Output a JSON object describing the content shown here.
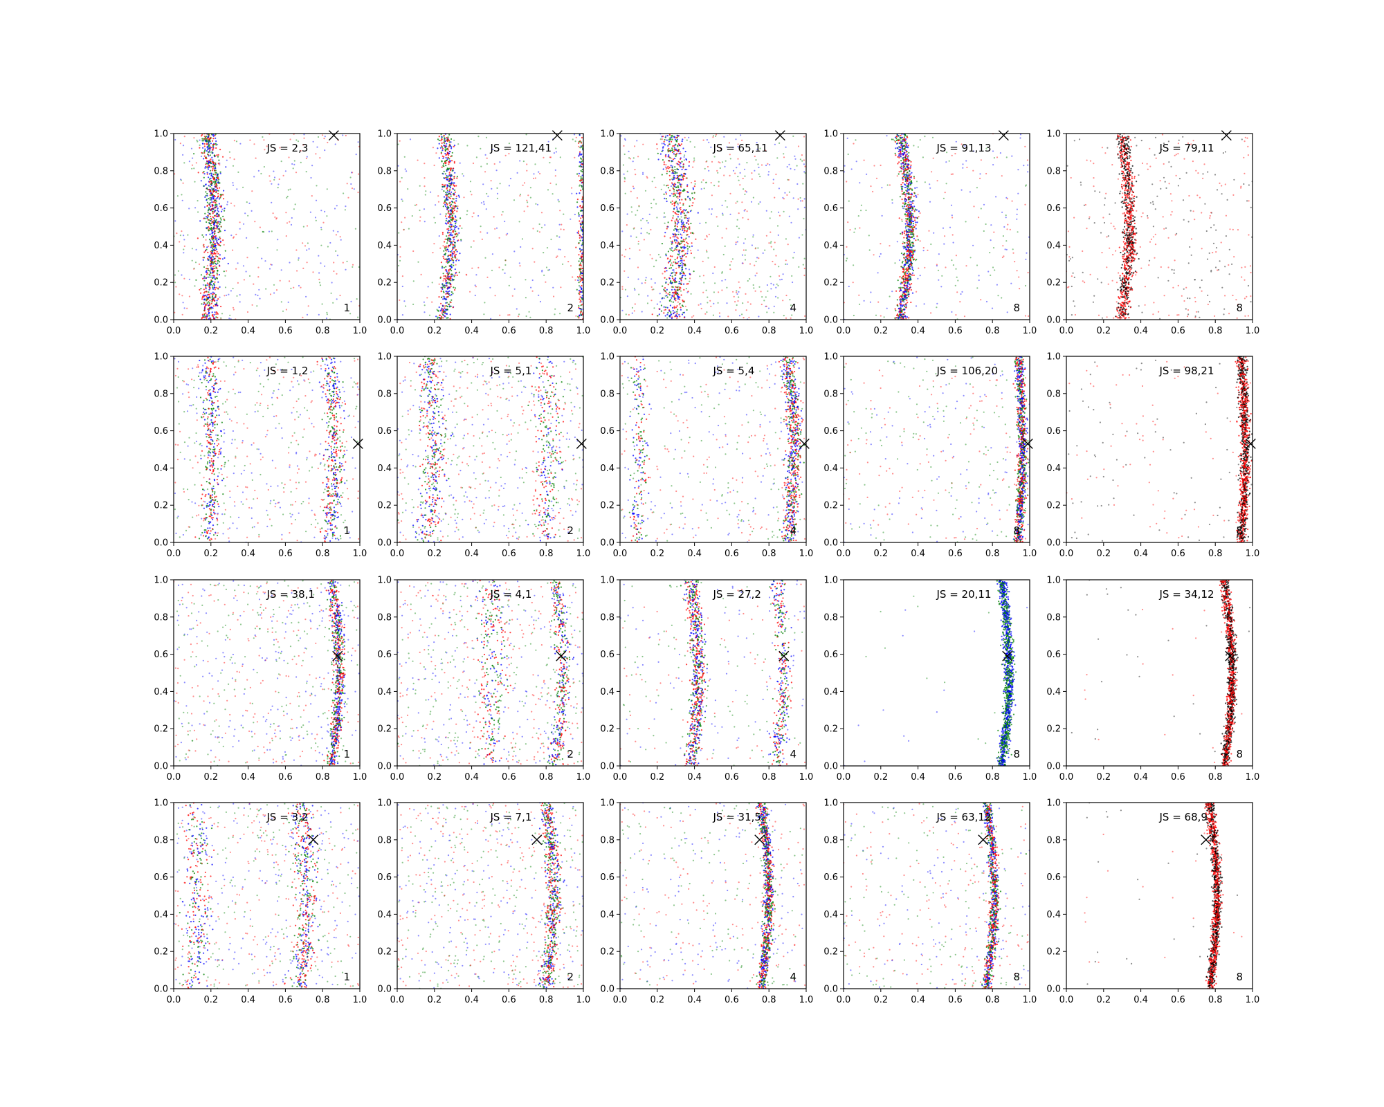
{
  "figure": {
    "rows": 4,
    "cols": 5,
    "colors": {
      "red": "#ff0000",
      "green": "#008000",
      "blue": "#0000ff",
      "black": "#000000"
    }
  },
  "chart_data": [
    {
      "type": "scatter",
      "row": 0,
      "col": 0,
      "annotation": "JS = 2,3",
      "corner_label": "1",
      "xlim": [
        0,
        1
      ],
      "ylim": [
        0,
        1
      ],
      "xticks": [
        "0.0",
        "0.2",
        "0.4",
        "0.6",
        "0.8",
        "1.0"
      ],
      "yticks": [
        "0.0",
        "0.2",
        "0.4",
        "0.6",
        "0.8",
        "1.0"
      ],
      "marker": {
        "x": 0.86,
        "y": 0.99
      },
      "colors": [
        "red",
        "green",
        "blue"
      ],
      "bands": [
        {
          "x0": 0.2,
          "amp": 0.03,
          "width": 0.05,
          "share": 0.7
        }
      ]
    },
    {
      "type": "scatter",
      "row": 0,
      "col": 1,
      "annotation": "JS = 121,41",
      "corner_label": "2",
      "xlim": [
        0,
        1
      ],
      "ylim": [
        0,
        1
      ],
      "xticks": [
        "0.0",
        "0.2",
        "0.4",
        "0.6",
        "0.8",
        "1.0"
      ],
      "yticks": [
        "0.0",
        "0.2",
        "0.4",
        "0.6",
        "0.8",
        "1.0"
      ],
      "marker": {
        "x": 0.86,
        "y": 0.99
      },
      "colors": [
        "red",
        "green",
        "blue"
      ],
      "bands": [
        {
          "x0": 0.27,
          "amp": 0.04,
          "width": 0.04,
          "share": 0.55
        },
        {
          "x0": 0.99,
          "amp": 0.0,
          "width": 0.02,
          "share": 0.2
        }
      ]
    },
    {
      "type": "scatter",
      "row": 0,
      "col": 2,
      "annotation": "JS = 65,11",
      "corner_label": "4",
      "xlim": [
        0,
        1
      ],
      "ylim": [
        0,
        1
      ],
      "xticks": [
        "0.0",
        "0.2",
        "0.4",
        "0.6",
        "0.8",
        "1.0"
      ],
      "yticks": [
        "0.0",
        "0.2",
        "0.4",
        "0.6",
        "0.8",
        "1.0"
      ],
      "marker": {
        "x": 0.86,
        "y": 0.99
      },
      "colors": [
        "red",
        "green",
        "blue"
      ],
      "bands": [
        {
          "x0": 0.3,
          "amp": 0.05,
          "width": 0.07,
          "share": 0.55
        }
      ]
    },
    {
      "type": "scatter",
      "row": 0,
      "col": 3,
      "annotation": "JS = 91,13",
      "corner_label": "8",
      "xlim": [
        0,
        1
      ],
      "ylim": [
        0,
        1
      ],
      "xticks": [
        "0.0",
        "0.2",
        "0.4",
        "0.6",
        "0.8",
        "1.0"
      ],
      "yticks": [
        "0.0",
        "0.2",
        "0.4",
        "0.6",
        "0.8",
        "1.0"
      ],
      "marker": {
        "x": 0.86,
        "y": 0.99
      },
      "colors": [
        "red",
        "green",
        "blue"
      ],
      "bands": [
        {
          "x0": 0.33,
          "amp": 0.05,
          "width": 0.035,
          "share": 0.8
        }
      ]
    },
    {
      "type": "scatter",
      "row": 0,
      "col": 4,
      "annotation": "JS = 79,11",
      "corner_label": "8",
      "xlim": [
        0,
        1
      ],
      "ylim": [
        0,
        1
      ],
      "xticks": [
        "0.0",
        "0.2",
        "0.4",
        "0.6",
        "0.8",
        "1.0"
      ],
      "yticks": [
        "0.0",
        "0.2",
        "0.4",
        "0.6",
        "0.8",
        "1.0"
      ],
      "marker": {
        "x": 0.86,
        "y": 0.99
      },
      "colors": [
        "red",
        "black"
      ],
      "bands": [
        {
          "x0": 0.32,
          "amp": 0.04,
          "width": 0.035,
          "share": 0.75
        }
      ]
    },
    {
      "type": "scatter",
      "row": 1,
      "col": 0,
      "annotation": "JS = 1,2",
      "corner_label": "1",
      "xlim": [
        0,
        1
      ],
      "ylim": [
        0,
        1
      ],
      "xticks": [
        "0.0",
        "0.2",
        "0.4",
        "0.6",
        "0.8",
        "1.0"
      ],
      "yticks": [
        "0.0",
        "0.2",
        "0.4",
        "0.6",
        "0.8",
        "1.0"
      ],
      "marker": {
        "x": 0.99,
        "y": 0.53
      },
      "colors": [
        "red",
        "green",
        "blue"
      ],
      "bands": [
        {
          "x0": 0.2,
          "amp": 0.02,
          "width": 0.05,
          "share": 0.3
        },
        {
          "x0": 0.85,
          "amp": 0.03,
          "width": 0.05,
          "share": 0.3
        }
      ]
    },
    {
      "type": "scatter",
      "row": 1,
      "col": 1,
      "annotation": "JS = 5,1",
      "corner_label": "2",
      "xlim": [
        0,
        1
      ],
      "ylim": [
        0,
        1
      ],
      "xticks": [
        "0.0",
        "0.2",
        "0.4",
        "0.6",
        "0.8",
        "1.0"
      ],
      "yticks": [
        "0.0",
        "0.2",
        "0.4",
        "0.6",
        "0.8",
        "1.0"
      ],
      "marker": {
        "x": 0.99,
        "y": 0.53
      },
      "colors": [
        "red",
        "green",
        "blue"
      ],
      "bands": [
        {
          "x0": 0.18,
          "amp": 0.03,
          "width": 0.07,
          "share": 0.3
        },
        {
          "x0": 0.8,
          "amp": 0.03,
          "width": 0.07,
          "share": 0.2
        }
      ]
    },
    {
      "type": "scatter",
      "row": 1,
      "col": 2,
      "annotation": "JS = 5,4",
      "corner_label": "4",
      "xlim": [
        0,
        1
      ],
      "ylim": [
        0,
        1
      ],
      "xticks": [
        "0.0",
        "0.2",
        "0.4",
        "0.6",
        "0.8",
        "1.0"
      ],
      "yticks": [
        "0.0",
        "0.2",
        "0.4",
        "0.6",
        "0.8",
        "1.0"
      ],
      "marker": {
        "x": 0.99,
        "y": 0.53
      },
      "colors": [
        "red",
        "green",
        "blue"
      ],
      "bands": [
        {
          "x0": 0.92,
          "amp": 0.03,
          "width": 0.04,
          "share": 0.55
        },
        {
          "x0": 0.1,
          "amp": 0.02,
          "width": 0.04,
          "share": 0.15
        }
      ]
    },
    {
      "type": "scatter",
      "row": 1,
      "col": 3,
      "annotation": "JS = 106,20",
      "corner_label": "8",
      "xlim": [
        0,
        1
      ],
      "ylim": [
        0,
        1
      ],
      "xticks": [
        "0.0",
        "0.2",
        "0.4",
        "0.6",
        "0.8",
        "1.0"
      ],
      "yticks": [
        "0.0",
        "0.2",
        "0.4",
        "0.6",
        "0.8",
        "1.0"
      ],
      "marker": {
        "x": 0.99,
        "y": 0.53
      },
      "colors": [
        "red",
        "green",
        "blue"
      ],
      "bands": [
        {
          "x0": 0.95,
          "amp": 0.02,
          "width": 0.025,
          "share": 0.75
        }
      ]
    },
    {
      "type": "scatter",
      "row": 1,
      "col": 4,
      "annotation": "JS = 98,21",
      "corner_label": "8",
      "xlim": [
        0,
        1
      ],
      "ylim": [
        0,
        1
      ],
      "xticks": [
        "0.0",
        "0.2",
        "0.4",
        "0.6",
        "0.8",
        "1.0"
      ],
      "yticks": [
        "0.0",
        "0.2",
        "0.4",
        "0.6",
        "0.8",
        "1.0"
      ],
      "marker": {
        "x": 0.99,
        "y": 0.53
      },
      "colors": [
        "red",
        "black"
      ],
      "bands": [
        {
          "x0": 0.95,
          "amp": 0.02,
          "width": 0.025,
          "share": 0.9
        }
      ]
    },
    {
      "type": "scatter",
      "row": 2,
      "col": 0,
      "annotation": "JS = 38,1",
      "corner_label": "1",
      "xlim": [
        0,
        1
      ],
      "ylim": [
        0,
        1
      ],
      "xticks": [
        "0.0",
        "0.2",
        "0.4",
        "0.6",
        "0.8",
        "1.0"
      ],
      "yticks": [
        "0.0",
        "0.2",
        "0.4",
        "0.6",
        "0.8",
        "1.0"
      ],
      "marker": {
        "x": 0.88,
        "y": 0.59
      },
      "colors": [
        "red",
        "green",
        "blue"
      ],
      "bands": [
        {
          "x0": 0.87,
          "amp": 0.04,
          "width": 0.03,
          "share": 0.55
        }
      ]
    },
    {
      "type": "scatter",
      "row": 2,
      "col": 1,
      "annotation": "JS = 4,1",
      "corner_label": "2",
      "xlim": [
        0,
        1
      ],
      "ylim": [
        0,
        1
      ],
      "xticks": [
        "0.0",
        "0.2",
        "0.4",
        "0.6",
        "0.8",
        "1.0"
      ],
      "yticks": [
        "0.0",
        "0.2",
        "0.4",
        "0.6",
        "0.8",
        "1.0"
      ],
      "marker": {
        "x": 0.88,
        "y": 0.59
      },
      "colors": [
        "red",
        "green",
        "blue"
      ],
      "bands": [
        {
          "x0": 0.87,
          "amp": 0.04,
          "width": 0.04,
          "share": 0.3
        },
        {
          "x0": 0.5,
          "amp": 0.03,
          "width": 0.08,
          "share": 0.2
        }
      ]
    },
    {
      "type": "scatter",
      "row": 2,
      "col": 2,
      "annotation": "JS = 27,2",
      "corner_label": "4",
      "xlim": [
        0,
        1
      ],
      "ylim": [
        0,
        1
      ],
      "xticks": [
        "0.0",
        "0.2",
        "0.4",
        "0.6",
        "0.8",
        "1.0"
      ],
      "yticks": [
        "0.0",
        "0.2",
        "0.4",
        "0.6",
        "0.8",
        "1.0"
      ],
      "marker": {
        "x": 0.88,
        "y": 0.59
      },
      "colors": [
        "red",
        "green",
        "blue"
      ],
      "bands": [
        {
          "x0": 0.4,
          "amp": 0.04,
          "width": 0.04,
          "share": 0.55
        },
        {
          "x0": 0.86,
          "amp": 0.03,
          "width": 0.04,
          "share": 0.25
        }
      ]
    },
    {
      "type": "scatter",
      "row": 2,
      "col": 3,
      "annotation": "JS = 20,11",
      "corner_label": "8",
      "xlim": [
        0,
        1
      ],
      "ylim": [
        0,
        1
      ],
      "xticks": [
        "0.0",
        "0.2",
        "0.4",
        "0.6",
        "0.8",
        "1.0"
      ],
      "yticks": [
        "0.0",
        "0.2",
        "0.4",
        "0.6",
        "0.8",
        "1.0"
      ],
      "marker": {
        "x": 0.88,
        "y": 0.59
      },
      "colors": [
        "green",
        "blue"
      ],
      "bands": [
        {
          "x0": 0.87,
          "amp": 0.04,
          "width": 0.025,
          "share": 0.98
        }
      ]
    },
    {
      "type": "scatter",
      "row": 2,
      "col": 4,
      "annotation": "JS = 34,12",
      "corner_label": "8",
      "xlim": [
        0,
        1
      ],
      "ylim": [
        0,
        1
      ],
      "xticks": [
        "0.0",
        "0.2",
        "0.4",
        "0.6",
        "0.8",
        "1.0"
      ],
      "yticks": [
        "0.0",
        "0.2",
        "0.4",
        "0.6",
        "0.8",
        "1.0"
      ],
      "marker": {
        "x": 0.88,
        "y": 0.59
      },
      "colors": [
        "red",
        "black"
      ],
      "bands": [
        {
          "x0": 0.87,
          "amp": 0.04,
          "width": 0.022,
          "share": 0.97
        }
      ]
    },
    {
      "type": "scatter",
      "row": 3,
      "col": 0,
      "annotation": "JS = 3,2",
      "corner_label": "1",
      "xlim": [
        0,
        1
      ],
      "ylim": [
        0,
        1
      ],
      "xticks": [
        "0.0",
        "0.2",
        "0.4",
        "0.6",
        "0.8",
        "1.0"
      ],
      "yticks": [
        "0.0",
        "0.2",
        "0.4",
        "0.6",
        "0.8",
        "1.0"
      ],
      "marker": {
        "x": 0.75,
        "y": 0.8
      },
      "colors": [
        "red",
        "green",
        "blue"
      ],
      "bands": [
        {
          "x0": 0.7,
          "amp": 0.03,
          "width": 0.06,
          "share": 0.35
        },
        {
          "x0": 0.12,
          "amp": 0.02,
          "width": 0.07,
          "share": 0.2
        }
      ]
    },
    {
      "type": "scatter",
      "row": 3,
      "col": 1,
      "annotation": "JS = 7,1",
      "corner_label": "2",
      "xlim": [
        0,
        1
      ],
      "ylim": [
        0,
        1
      ],
      "xticks": [
        "0.0",
        "0.2",
        "0.4",
        "0.6",
        "0.8",
        "1.0"
      ],
      "yticks": [
        "0.0",
        "0.2",
        "0.4",
        "0.6",
        "0.8",
        "1.0"
      ],
      "marker": {
        "x": 0.75,
        "y": 0.8
      },
      "colors": [
        "red",
        "green",
        "blue"
      ],
      "bands": [
        {
          "x0": 0.82,
          "amp": 0.04,
          "width": 0.04,
          "share": 0.5
        }
      ]
    },
    {
      "type": "scatter",
      "row": 3,
      "col": 2,
      "annotation": "JS = 31,5",
      "corner_label": "4",
      "xlim": [
        0,
        1
      ],
      "ylim": [
        0,
        1
      ],
      "xticks": [
        "0.0",
        "0.2",
        "0.4",
        "0.6",
        "0.8",
        "1.0"
      ],
      "yticks": [
        "0.0",
        "0.2",
        "0.4",
        "0.6",
        "0.8",
        "1.0"
      ],
      "marker": {
        "x": 0.75,
        "y": 0.8
      },
      "colors": [
        "red",
        "green",
        "blue"
      ],
      "bands": [
        {
          "x0": 0.78,
          "amp": 0.04,
          "width": 0.025,
          "share": 0.7
        }
      ]
    },
    {
      "type": "scatter",
      "row": 3,
      "col": 3,
      "annotation": "JS = 63,12",
      "corner_label": "8",
      "xlim": [
        0,
        1
      ],
      "ylim": [
        0,
        1
      ],
      "xticks": [
        "0.0",
        "0.2",
        "0.4",
        "0.6",
        "0.8",
        "1.0"
      ],
      "yticks": [
        "0.0",
        "0.2",
        "0.4",
        "0.6",
        "0.8",
        "1.0"
      ],
      "marker": {
        "x": 0.75,
        "y": 0.8
      },
      "colors": [
        "red",
        "green",
        "blue"
      ],
      "bands": [
        {
          "x0": 0.79,
          "amp": 0.04,
          "width": 0.025,
          "share": 0.7
        }
      ]
    },
    {
      "type": "scatter",
      "row": 3,
      "col": 4,
      "annotation": "JS = 68,9",
      "corner_label": "8",
      "xlim": [
        0,
        1
      ],
      "ylim": [
        0,
        1
      ],
      "xticks": [
        "0.0",
        "0.2",
        "0.4",
        "0.6",
        "0.8",
        "1.0"
      ],
      "yticks": [
        "0.0",
        "0.2",
        "0.4",
        "0.6",
        "0.8",
        "1.0"
      ],
      "marker": {
        "x": 0.75,
        "y": 0.8
      },
      "colors": [
        "red",
        "black"
      ],
      "bands": [
        {
          "x0": 0.79,
          "amp": 0.04,
          "width": 0.022,
          "share": 0.97
        }
      ]
    }
  ]
}
